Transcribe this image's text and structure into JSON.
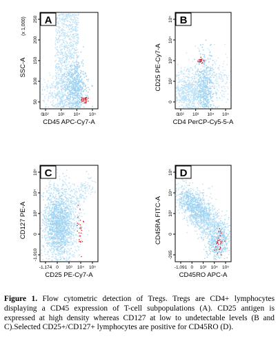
{
  "panels": [
    {
      "id": "A",
      "label": "A",
      "ylabel": "SSC-A",
      "ylabel_multiplier": "(x 1,000)",
      "xlabel": "CD45 APC-Cy7-A",
      "yticks": [
        "250",
        "200",
        "150",
        "100",
        "50"
      ],
      "xticks": [
        "10²",
        "10³",
        "10⁴",
        "10⁵"
      ],
      "xticks_minor": [
        "0"
      ]
    },
    {
      "id": "B",
      "label": "B",
      "ylabel": "CD25 PE-Cy7-A",
      "xlabel": "CD4 PerCP-Cy5-5-A",
      "yticks": [
        "10⁵",
        "10⁴",
        "10³",
        "10²",
        "0"
      ],
      "xticks": [
        "10²",
        "10³",
        "10⁴",
        "10⁵"
      ],
      "xticks_minor": [
        "0"
      ]
    },
    {
      "id": "C",
      "label": "C",
      "ylabel": "CD127 PE-A",
      "xlabel": "CD25 PE-Cy7-A",
      "yticks": [
        "10⁵",
        "10⁴",
        "10³",
        "0",
        "-1,910"
      ],
      "xticks": [
        "-1,174",
        "0",
        "10³",
        "10⁴",
        "10⁵"
      ],
      "xticks_minor": []
    },
    {
      "id": "D",
      "label": "D",
      "ylabel": "CD45RA FITC-A",
      "xlabel": "CD45RO APC-A",
      "yticks": [
        "10⁵",
        "10⁴",
        "10³",
        "0",
        "-265"
      ],
      "xticks": [
        "-1,091",
        "0",
        "10³",
        "10⁴",
        "10⁵"
      ],
      "xticks_minor": []
    }
  ],
  "colors": {
    "population": "#bfe3f7",
    "population_dense": "#9fd2f0",
    "selected_events": "#d4262a",
    "axis": "#000000"
  },
  "caption": {
    "label": "Figure 1.",
    "text": " Flow cytometric detection of Tregs. Tregs are CD4+ lymphocytes displaying a CD45 expression of T-cell subpopulations (A). CD25 antigen is expressed at high density whereas CD127 at low to undetectable levels (B and C).Selected CD25+/CD127+ lymphocytes are positive for CD45RO (D)."
  }
}
